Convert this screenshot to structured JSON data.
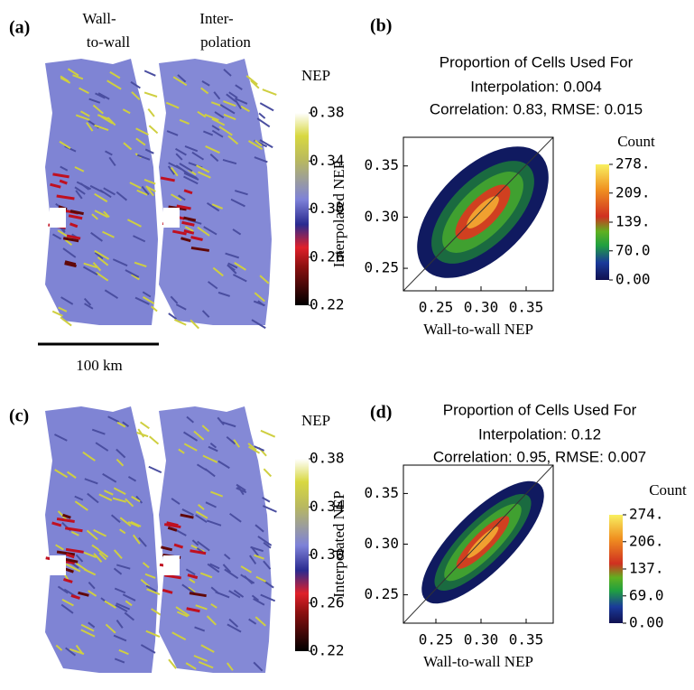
{
  "map_panels": [
    {
      "label": "(a)",
      "columns": [
        [
          "Wall-",
          "to-wall"
        ],
        [
          "Inter-",
          "polation"
        ]
      ],
      "colorbar": {
        "title": "NEP",
        "ticks": [
          0.38,
          0.34,
          {
            "value": 0.3,
            "label": "0.30"
          },
          0.26,
          0.22
        ]
      },
      "scale_bar": "100 km"
    },
    {
      "label": "(c)",
      "colorbar": {
        "title": "NEP",
        "ticks": [
          0.38,
          0.34,
          {
            "value": 0.3,
            "label": "0.30"
          },
          0.26,
          0.22
        ]
      }
    }
  ],
  "scatter_panels": [
    {
      "label": "(b)",
      "title": [
        "Proportion of Cells Used For",
        "Interpolation: 0.004",
        "Correlation: 0.83, RMSE: 0.015"
      ],
      "x_label": "Wall-to-wall NEP",
      "y_label": "Interpolated NEP",
      "xlim": [
        0.214,
        0.38
      ],
      "ylim": [
        0.228,
        0.378
      ],
      "xticks": [
        0.25,
        {
          "value": 0.3,
          "label": "0.30"
        },
        0.35
      ],
      "yticks": [
        0.25,
        {
          "value": 0.3,
          "label": "0.30"
        },
        0.35
      ],
      "colorbar": {
        "title": "Count",
        "ticks": [
          {
            "value": 278,
            "label": "278."
          },
          {
            "value": 209,
            "label": "209."
          },
          {
            "value": 139,
            "label": "139."
          },
          {
            "value": 70,
            "label": "70.0"
          },
          {
            "value": 0,
            "label": "0.00"
          }
        ]
      }
    },
    {
      "label": "(d)",
      "title": [
        "Proportion of Cells Used For",
        "Interpolation: 0.12",
        "Correlation: 0.95, RMSE: 0.007"
      ],
      "x_label": "Wall-to-wall NEP",
      "y_label": "Interpolated NEP",
      "xlim": [
        0.214,
        0.38
      ],
      "ylim": [
        0.222,
        0.378
      ],
      "xticks": [
        0.25,
        {
          "value": 0.3,
          "label": "0.30"
        },
        0.35
      ],
      "yticks": [
        0.25,
        {
          "value": 0.3,
          "label": "0.30"
        },
        0.35
      ],
      "colorbar": {
        "title": "Count",
        "ticks": [
          {
            "value": 274,
            "label": "274."
          },
          {
            "value": 206,
            "label": "206."
          },
          {
            "value": 137,
            "label": "137."
          },
          {
            "value": 69,
            "label": "69.0"
          },
          {
            "value": 0,
            "label": "0.00"
          }
        ]
      }
    }
  ]
}
